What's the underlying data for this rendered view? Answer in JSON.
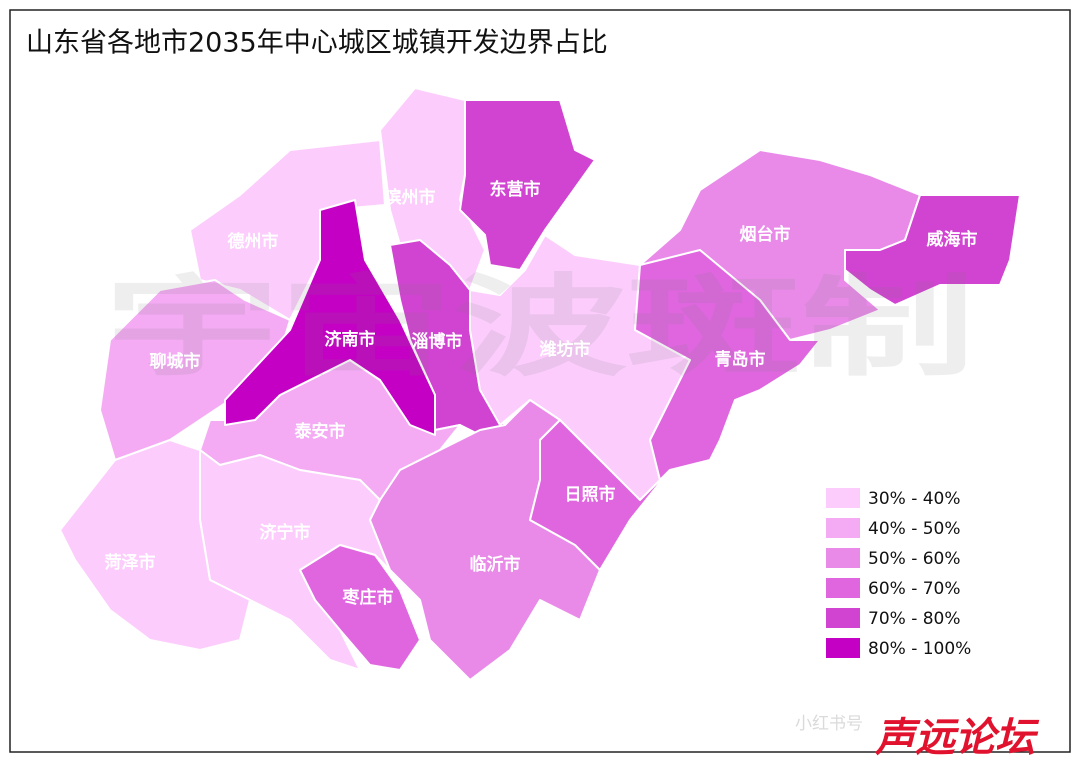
{
  "title": "山东省各地市2035年中心城区城镇开发边界占比",
  "watermark": "宇宙波斑制",
  "regions": [
    {
      "name": "德州市",
      "color": "#fccdfc"
    },
    {
      "name": "滨州市",
      "color": "#fccdfc"
    },
    {
      "name": "东营市",
      "color": "#d143d1"
    },
    {
      "name": "聊城市",
      "color": "#f4abf4"
    },
    {
      "name": "淄博市",
      "color": "#d143d1"
    },
    {
      "name": "潍坊市",
      "color": "#fccdfc"
    },
    {
      "name": "烟台市",
      "color": "#e98ae9"
    },
    {
      "name": "威海市",
      "color": "#d143d1"
    },
    {
      "name": "青岛市",
      "color": "#df66df"
    },
    {
      "name": "泰安市",
      "color": "#f4abf4"
    },
    {
      "name": "济宁市",
      "color": "#fccdfc"
    },
    {
      "name": "菏泽市",
      "color": "#fccdfc"
    },
    {
      "name": "临沂市",
      "color": "#e98ae9"
    },
    {
      "name": "日照市",
      "color": "#df66df"
    },
    {
      "name": "枣庄市",
      "color": "#df66df"
    },
    {
      "name": "济南市",
      "color": "#c300c3"
    }
  ],
  "legend": [
    {
      "label": "30% - 40%",
      "color": "#fccdfc"
    },
    {
      "label": "40% - 50%",
      "color": "#f4abf4"
    },
    {
      "label": "50% - 60%",
      "color": "#e98ae9"
    },
    {
      "label": "60% - 70%",
      "color": "#df66df"
    },
    {
      "label": "70% - 80%",
      "color": "#d143d1"
    },
    {
      "label": "80% - 100%",
      "color": "#c300c3"
    }
  ],
  "footer": {
    "source": "小红书号",
    "logo": "声远论坛"
  }
}
